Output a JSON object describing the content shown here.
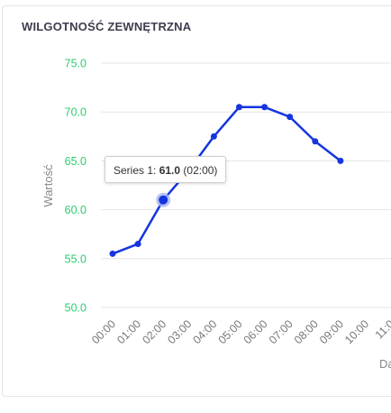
{
  "card": {
    "title": "WILGOTNOŚĆ ZEWNĘTRZNA"
  },
  "tooltip": {
    "series": "Series 1:",
    "value": "61.0",
    "time": "(02:00)"
  },
  "colors": {
    "line": "#1535e0",
    "ytick": "#2ecc71",
    "grid": "#e6e6e6",
    "highlight": "#a9b6f3"
  },
  "chart_data": {
    "type": "line",
    "title": "",
    "ylabel": "Wartość",
    "xlabel": "Da",
    "ylim": [
      50,
      75
    ],
    "yticks": [
      "75.0",
      "70.0",
      "65.0",
      "60.0",
      "55.0",
      "50.0"
    ],
    "categories": [
      "00:00",
      "01:00",
      "02:00",
      "03:00",
      "04:00",
      "05:00",
      "06:00",
      "07:00",
      "08:00",
      "09:00",
      "10:00",
      "11:0"
    ],
    "series": [
      {
        "values": [
          55.5,
          56.5,
          61.0,
          64.0,
          67.5,
          70.5,
          70.5,
          69.5,
          67.0,
          65.0,
          null,
          null
        ]
      }
    ],
    "highlight_index": 2
  }
}
